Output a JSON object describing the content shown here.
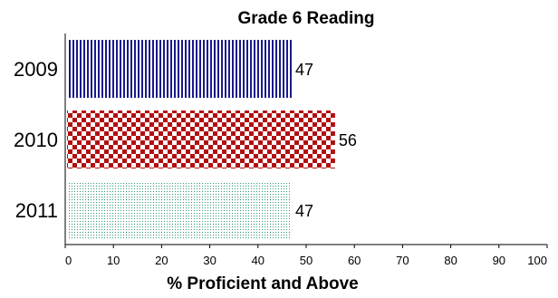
{
  "chart_data": {
    "type": "bar",
    "orientation": "horizontal",
    "title": "Grade 6 Reading",
    "xlabel": "% Proficient and Above",
    "ylabel": "",
    "categories": [
      "2009",
      "2010",
      "2011"
    ],
    "values": [
      47,
      56,
      47
    ],
    "data_labels": [
      "47",
      "56",
      "47"
    ],
    "xlim": [
      0,
      100
    ],
    "x_ticks": [
      "0",
      "10",
      "20",
      "30",
      "40",
      "50",
      "60",
      "70",
      "80",
      "90",
      "100"
    ],
    "grid": false,
    "legend": "none",
    "bar_styles": [
      {
        "pattern": "vertical-stripes",
        "color": "#1a1a8c"
      },
      {
        "pattern": "checkerboard",
        "color": "#b01010"
      },
      {
        "pattern": "dots",
        "color": "#2e9a6e"
      }
    ]
  }
}
